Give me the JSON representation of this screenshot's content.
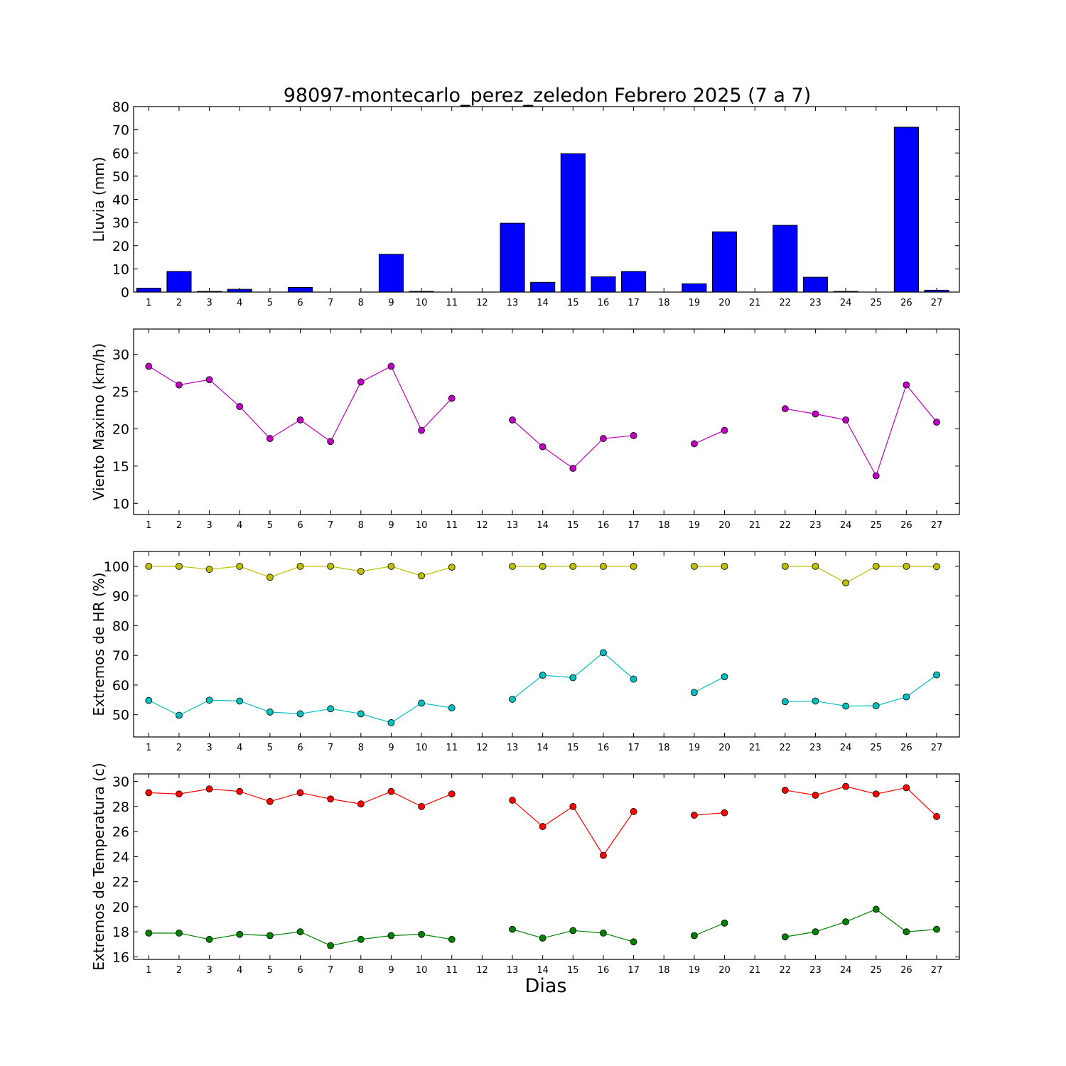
{
  "chart_data": {
    "type": "multi-panel",
    "title": "98097-montecarlo_perez_zeledon Febrero 2025  (7 a 7)",
    "xlabel": "Dias",
    "days": [
      "1",
      "2",
      "3",
      "4",
      "5",
      "6",
      "7",
      "8",
      "9",
      "10",
      "11",
      "12",
      "13",
      "14",
      "15",
      "16",
      "17",
      "18",
      "19",
      "20",
      "21",
      "22",
      "23",
      "24",
      "25",
      "26",
      "27"
    ],
    "panels": [
      {
        "type": "bar",
        "ylabel": "Lluvia (mm)",
        "ylim": [
          0,
          80
        ],
        "yticks": [
          0,
          10,
          20,
          30,
          40,
          50,
          60,
          70,
          80
        ],
        "series": [
          {
            "color": "#0000ff",
            "values": [
              1.7,
              8.9,
              0.3,
              1.2,
              0.0,
              2.0,
              0.0,
              0.0,
              16.3,
              0.3,
              0.0,
              0.0,
              29.7,
              4.2,
              59.7,
              6.6,
              8.9,
              0.0,
              3.6,
              26.0,
              0.0,
              28.8,
              6.4,
              0.3,
              0.0,
              71.1,
              0.8
            ]
          }
        ]
      },
      {
        "type": "line",
        "ylabel": "Viento Maximo (km/h)",
        "ylim": [
          8.5,
          33.4
        ],
        "yticks": [
          10,
          15,
          20,
          25,
          30
        ],
        "series": [
          {
            "color": "#bf00bf",
            "values": [
              28.4,
              25.9,
              26.6,
              23.0,
              18.7,
              21.2,
              18.3,
              26.3,
              28.4,
              19.8,
              24.1,
              null,
              21.2,
              17.6,
              14.7,
              18.7,
              19.1,
              null,
              18.0,
              19.8,
              null,
              22.7,
              22.0,
              21.2,
              13.7,
              25.9,
              20.9
            ]
          }
        ]
      },
      {
        "type": "line",
        "ylabel": "Extremos de HR (%)",
        "ylim": [
          42.5,
          105
        ],
        "yticks": [
          50,
          60,
          70,
          80,
          90,
          100
        ],
        "series": [
          {
            "color": "#bfbf00",
            "values": [
              100,
              100,
              99,
              100,
              96.3,
              100,
              100,
              98.3,
              100,
              96.8,
              99.7,
              null,
              100,
              100,
              100,
              100,
              100,
              null,
              100,
              100,
              null,
              100,
              100,
              94.4,
              100,
              100,
              99.9
            ]
          },
          {
            "color": "#00bfbf",
            "values": [
              54.8,
              49.8,
              54.9,
              54.6,
              50.9,
              50.3,
              52.0,
              50.3,
              47.3,
              53.9,
              52.3,
              null,
              55.2,
              63.3,
              62.5,
              70.9,
              62.0,
              null,
              57.5,
              62.8,
              null,
              54.4,
              54.6,
              52.9,
              53.0,
              56.0,
              63.4
            ]
          }
        ]
      },
      {
        "type": "line",
        "ylabel": "Extremos de Temperatura (c)",
        "ylim": [
          15.8,
          30.6
        ],
        "yticks": [
          16,
          18,
          20,
          22,
          24,
          26,
          28,
          30
        ],
        "series": [
          {
            "color": "#ff0000",
            "values": [
              29.1,
              29.0,
              29.4,
              29.2,
              28.4,
              29.1,
              28.6,
              28.2,
              29.2,
              28.0,
              29.0,
              null,
              28.5,
              26.4,
              28.0,
              24.1,
              27.6,
              null,
              27.3,
              27.5,
              null,
              29.3,
              28.9,
              29.6,
              29.0,
              29.5,
              27.2
            ]
          },
          {
            "color": "#008000",
            "values": [
              17.9,
              17.9,
              17.4,
              17.8,
              17.7,
              18.0,
              16.9,
              17.4,
              17.7,
              17.8,
              17.4,
              null,
              18.2,
              17.5,
              18.1,
              17.9,
              17.2,
              null,
              17.7,
              18.7,
              null,
              17.6,
              18.0,
              18.8,
              19.8,
              18.0,
              18.2
            ]
          }
        ]
      }
    ]
  }
}
